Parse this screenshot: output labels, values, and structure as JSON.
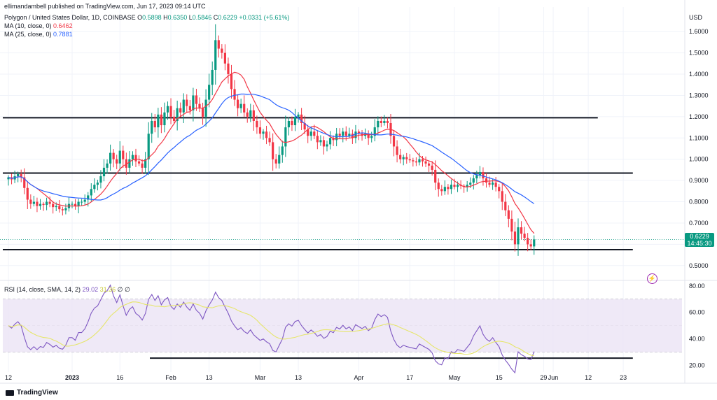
{
  "header": {
    "publisher": "ellimandambell published on TradingView.com, Jun 17, 2023 09:14 UTC"
  },
  "legend": {
    "symbol": "Polygon / United States Dollar, 1D, COINBASE",
    "open_label": "O",
    "open": "0.5898",
    "high_label": "H",
    "high": "0.6350",
    "low_label": "L",
    "low": "0.5846",
    "close_label": "C",
    "close": "0.6229",
    "change": "+0.0331 (+5.61%)",
    "ma10_label": "MA (10, close, 0)",
    "ma10_value": "0.6462",
    "ma25_label": "MA (25, close, 0)",
    "ma25_value": "0.7881"
  },
  "rsi_legend": {
    "label": "RSI (14, close, SMA, 14, 2)",
    "rsi_value": "29.02",
    "sma_value": "31.36",
    "extra1": "∅",
    "extra2": "∅"
  },
  "price_axis": {
    "currency": "USD",
    "last_price": "0.6229",
    "countdown": "14:45:30"
  },
  "brand": "TradingView",
  "colors": {
    "up": "#089981",
    "down": "#f23645",
    "ma10": "#f23645",
    "ma25": "#2962ff",
    "rsi": "#7e57c2",
    "rsi_sma": "#e6e66a",
    "rsi_band": "#ede7f6",
    "level": "#131722"
  },
  "chart_data": [
    {
      "type": "candlestick",
      "title": "Polygon / United States Dollar, 1D, COINBASE",
      "ylabel": "USD",
      "ylim": [
        0.45,
        1.65
      ],
      "y_ticks": [
        "0.5000",
        "0.6000",
        "0.7000",
        "0.8000",
        "0.9000",
        "1.0000",
        "1.1000",
        "1.2000",
        "1.3000",
        "1.4000",
        "1.5000",
        "1.6000"
      ],
      "x_ticks": [
        {
          "label": "12",
          "day": 0
        },
        {
          "label": "2023",
          "day": 20
        },
        {
          "label": "16",
          "day": 35
        },
        {
          "label": "Feb",
          "day": 51
        },
        {
          "label": "13",
          "day": 63
        },
        {
          "label": "Mar",
          "day": 79
        },
        {
          "label": "13",
          "day": 91
        },
        {
          "label": "Apr",
          "day": 110
        },
        {
          "label": "17",
          "day": 126
        },
        {
          "label": "May",
          "day": 140
        },
        {
          "label": "15",
          "day": 154
        },
        {
          "label": "29",
          "day": 168
        },
        {
          "label": "Jun",
          "day": 171
        },
        {
          "label": "12",
          "day": 182
        },
        {
          "label": "23",
          "day": 193
        }
      ],
      "close_series": [
        0.915,
        0.905,
        0.92,
        0.93,
        0.915,
        0.865,
        0.81,
        0.79,
        0.8,
        0.78,
        0.79,
        0.785,
        0.8,
        0.79,
        0.775,
        0.78,
        0.765,
        0.76,
        0.77,
        0.79,
        0.79,
        0.78,
        0.8,
        0.8,
        0.81,
        0.83,
        0.86,
        0.88,
        0.89,
        0.92,
        0.96,
        0.98,
        1.03,
        1.0,
        0.98,
        1.04,
        1.0,
        0.96,
        1.0,
        1.02,
        0.99,
        0.98,
        0.96,
        1.0,
        1.12,
        1.18,
        1.15,
        1.21,
        1.16,
        1.22,
        1.25,
        1.2,
        1.18,
        1.24,
        1.22,
        1.28,
        1.25,
        1.23,
        1.3,
        1.26,
        1.24,
        1.2,
        1.28,
        1.35,
        1.42,
        1.56,
        1.52,
        1.5,
        1.45,
        1.4,
        1.33,
        1.28,
        1.24,
        1.26,
        1.22,
        1.2,
        1.23,
        1.18,
        1.15,
        1.12,
        1.13,
        1.1,
        1.08,
        1.0,
        0.98,
        1.02,
        1.06,
        1.15,
        1.18,
        1.16,
        1.2,
        1.21,
        1.17,
        1.14,
        1.11,
        1.13,
        1.11,
        1.08,
        1.09,
        1.06,
        1.07,
        1.1,
        1.09,
        1.12,
        1.11,
        1.13,
        1.11,
        1.12,
        1.1,
        1.13,
        1.12,
        1.11,
        1.12,
        1.1,
        1.11,
        1.15,
        1.18,
        1.17,
        1.18,
        1.17,
        1.11,
        1.06,
        1.02,
        1.0,
        1.01,
        1.0,
        0.995,
        0.99,
        0.985,
        1.0,
        0.99,
        0.98,
        0.97,
        0.95,
        0.89,
        0.86,
        0.85,
        0.87,
        0.86,
        0.88,
        0.87,
        0.88,
        0.875,
        0.87,
        0.88,
        0.89,
        0.91,
        0.925,
        0.94,
        0.91,
        0.89,
        0.88,
        0.89,
        0.87,
        0.85,
        0.8,
        0.76,
        0.72,
        0.66,
        0.6,
        0.68,
        0.65,
        0.63,
        0.6,
        0.59,
        0.623
      ],
      "ma_series": [
        {
          "name": "MA (10, close, 0)",
          "last": 0.6462
        },
        {
          "name": "MA (25, close, 0)",
          "last": 0.7881
        }
      ],
      "horizontal_levels": [
        {
          "value": 1.195,
          "from_day": 0,
          "to_day": 185
        },
        {
          "value": 0.935,
          "from_day": 0,
          "to_day": 196
        },
        {
          "value": 0.575,
          "from_day": 0,
          "to_day": 196
        }
      ]
    },
    {
      "type": "line",
      "title": "RSI (14, close, SMA, 14, 2)",
      "ylim": [
        15,
        82
      ],
      "y_ticks": [
        "20.00",
        "40.00",
        "60.00",
        "80.00"
      ],
      "band": [
        30,
        70
      ],
      "midline": 50,
      "support_line": {
        "value": 25.5,
        "from_day": 40,
        "to_day": 196
      }
    }
  ]
}
